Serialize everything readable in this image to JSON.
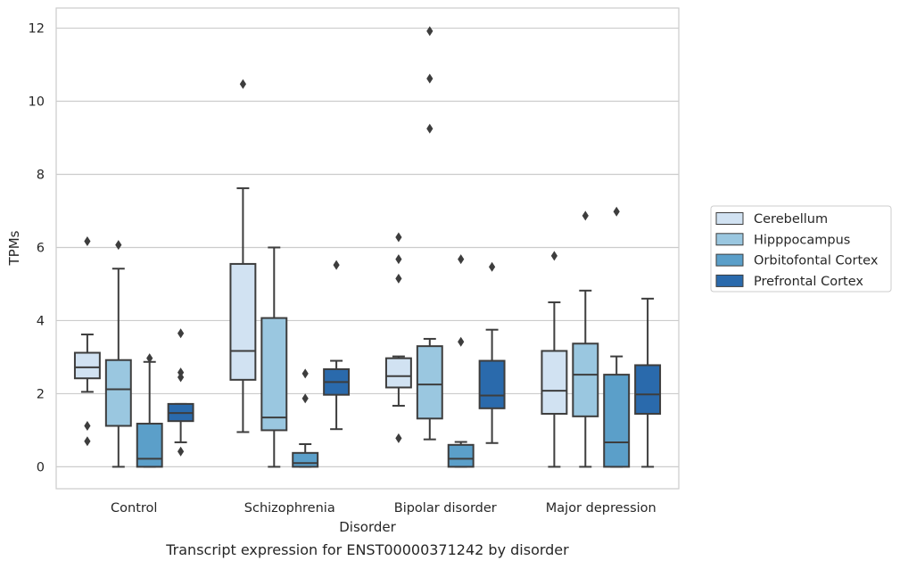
{
  "chart_data": {
    "type": "box",
    "caption": "Transcript expression for ENST00000371242 by disorder",
    "xlabel": "Disorder",
    "ylabel": "TPMs",
    "ylim": [
      -0.6,
      12.55
    ],
    "yticks": [
      0,
      2,
      4,
      6,
      8,
      10,
      12
    ],
    "grid": true,
    "legend_position": "right-outside",
    "categories": [
      "Control",
      "Schizophrenia",
      "Bipolar disorder",
      "Major depression"
    ],
    "series": [
      {
        "name": "Cerebellum",
        "color": "#d1e2f2",
        "boxes": [
          {
            "whislo": 2.05,
            "q1": 2.42,
            "med": 2.72,
            "q3": 3.12,
            "whishi": 3.62,
            "fliers": [
              6.17,
              1.12,
              0.7
            ]
          },
          {
            "whislo": 0.95,
            "q1": 2.38,
            "med": 3.17,
            "q3": 5.55,
            "whishi": 7.62,
            "fliers": [
              10.47
            ]
          },
          {
            "whislo": 1.67,
            "q1": 2.17,
            "med": 2.48,
            "q3": 2.97,
            "whishi": 3.02,
            "fliers": [
              6.28,
              5.68,
              5.15,
              0.78
            ]
          },
          {
            "whislo": 0.0,
            "q1": 1.45,
            "med": 2.08,
            "q3": 3.17,
            "whishi": 4.5,
            "fliers": [
              5.77
            ]
          }
        ]
      },
      {
        "name": "Hipppocampus",
        "color": "#9ac7e0",
        "boxes": [
          {
            "whislo": 0.0,
            "q1": 1.12,
            "med": 2.12,
            "q3": 2.92,
            "whishi": 5.42,
            "fliers": [
              6.07
            ]
          },
          {
            "whislo": 0.0,
            "q1": 1.0,
            "med": 1.35,
            "q3": 4.07,
            "whishi": 6.0,
            "fliers": []
          },
          {
            "whislo": 0.75,
            "q1": 1.32,
            "med": 2.25,
            "q3": 3.3,
            "whishi": 3.5,
            "fliers": [
              11.92,
              10.62,
              9.25
            ]
          },
          {
            "whislo": 0.0,
            "q1": 1.38,
            "med": 2.52,
            "q3": 3.37,
            "whishi": 4.82,
            "fliers": [
              6.87
            ]
          }
        ]
      },
      {
        "name": "Orbitofontal Cortex",
        "color": "#5b9fc9",
        "boxes": [
          {
            "whislo": 0.0,
            "q1": 0.0,
            "med": 0.22,
            "q3": 1.18,
            "whishi": 2.87,
            "fliers": [
              2.97
            ]
          },
          {
            "whislo": 0.0,
            "q1": 0.0,
            "med": 0.1,
            "q3": 0.38,
            "whishi": 0.62,
            "fliers": [
              2.55,
              1.87
            ]
          },
          {
            "whislo": 0.0,
            "q1": 0.0,
            "med": 0.22,
            "q3": 0.6,
            "whishi": 0.68,
            "fliers": [
              5.68,
              3.42
            ]
          },
          {
            "whislo": 0.0,
            "q1": 0.0,
            "med": 0.67,
            "q3": 2.52,
            "whishi": 3.02,
            "fliers": [
              6.98
            ]
          }
        ]
      },
      {
        "name": "Prefrontal Cortex",
        "color": "#2a6aac",
        "boxes": [
          {
            "whislo": 0.67,
            "q1": 1.25,
            "med": 1.47,
            "q3": 1.72,
            "whishi": 1.72,
            "fliers": [
              3.65,
              2.58,
              2.45,
              0.42
            ]
          },
          {
            "whislo": 1.03,
            "q1": 1.97,
            "med": 2.32,
            "q3": 2.67,
            "whishi": 2.9,
            "fliers": [
              5.52
            ]
          },
          {
            "whislo": 0.65,
            "q1": 1.6,
            "med": 1.95,
            "q3": 2.9,
            "whishi": 3.75,
            "fliers": [
              5.47
            ]
          },
          {
            "whislo": 0.0,
            "q1": 1.45,
            "med": 1.98,
            "q3": 2.78,
            "whishi": 4.6,
            "fliers": []
          }
        ]
      }
    ]
  }
}
